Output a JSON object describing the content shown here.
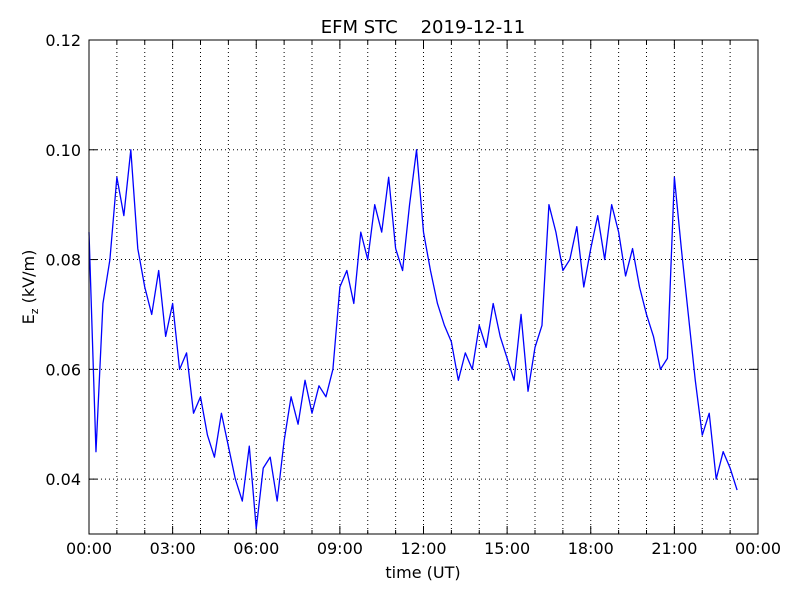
{
  "chart_data": {
    "type": "line",
    "title": "EFM STC    2019-12-11",
    "x_label": "time (UT)",
    "y_label": {
      "main": "E",
      "sub": "z",
      "rest": " (kV/m)"
    },
    "xlim": [
      0,
      24
    ],
    "xticks": [
      {
        "value": 0,
        "label": "00:00"
      },
      {
        "value": 3,
        "label": "03:00"
      },
      {
        "value": 6,
        "label": "06:00"
      },
      {
        "value": 9,
        "label": "09:00"
      },
      {
        "value": 12,
        "label": "12:00"
      },
      {
        "value": 15,
        "label": "15:00"
      },
      {
        "value": 18,
        "label": "18:00"
      },
      {
        "value": 21,
        "label": "21:00"
      },
      {
        "value": 24,
        "label": "00:00"
      }
    ],
    "xminorticks": [
      1,
      2,
      4,
      5,
      7,
      8,
      10,
      11,
      13,
      14,
      16,
      17,
      19,
      20,
      22,
      23
    ],
    "ylim": [
      0.03,
      0.12
    ],
    "yticks": [
      0.04,
      0.06,
      0.08,
      {
        "value": 0.1,
        "label": "0.10"
      },
      0.12
    ],
    "grid": true,
    "series": [
      {
        "color": "#0000ff",
        "x": [
          0,
          0.25,
          0.5,
          0.75,
          1,
          1.25,
          1.5,
          1.75,
          2,
          2.25,
          2.5,
          2.75,
          3,
          3.25,
          3.5,
          3.75,
          4,
          4.25,
          4.5,
          4.75,
          5,
          5.25,
          5.5,
          5.75,
          6,
          6.25,
          6.5,
          6.75,
          7,
          7.25,
          7.5,
          7.75,
          8,
          8.25,
          8.5,
          8.75,
          9,
          9.25,
          9.5,
          9.75,
          10,
          10.25,
          10.5,
          10.75,
          11,
          11.25,
          11.5,
          11.75,
          12,
          12.25,
          12.5,
          12.75,
          13,
          13.25,
          13.5,
          13.75,
          14,
          14.25,
          14.5,
          14.75,
          15,
          15.25,
          15.5,
          15.75,
          16,
          16.25,
          16.5,
          16.75,
          17,
          17.25,
          17.5,
          17.75,
          18,
          18.25,
          18.5,
          18.75,
          19,
          19.25,
          19.5,
          19.75,
          20,
          20.25,
          20.5,
          20.75,
          21,
          21.25,
          21.5,
          21.75,
          22,
          22.25,
          22.5,
          22.75,
          23,
          23.25
        ],
        "values": [
          0.085,
          0.045,
          0.072,
          0.08,
          0.095,
          0.088,
          0.1,
          0.082,
          0.075,
          0.07,
          0.078,
          0.066,
          0.072,
          0.06,
          0.063,
          0.052,
          0.055,
          0.048,
          0.044,
          0.052,
          0.046,
          0.04,
          0.036,
          0.046,
          0.031,
          0.042,
          0.044,
          0.036,
          0.047,
          0.055,
          0.05,
          0.058,
          0.052,
          0.057,
          0.055,
          0.06,
          0.075,
          0.078,
          0.072,
          0.085,
          0.08,
          0.09,
          0.085,
          0.095,
          0.082,
          0.078,
          0.09,
          0.1,
          0.085,
          0.078,
          0.072,
          0.068,
          0.065,
          0.058,
          0.063,
          0.06,
          0.068,
          0.064,
          0.072,
          0.066,
          0.062,
          0.058,
          0.07,
          0.056,
          0.064,
          0.068,
          0.09,
          0.085,
          0.078,
          0.08,
          0.086,
          0.075,
          0.082,
          0.088,
          0.08,
          0.09,
          0.085,
          0.077,
          0.082,
          0.075,
          0.07,
          0.066,
          0.06,
          0.062,
          0.095,
          0.082,
          0.07,
          0.058,
          0.048,
          0.052,
          0.04,
          0.045,
          0.042,
          0.038
        ]
      }
    ]
  }
}
